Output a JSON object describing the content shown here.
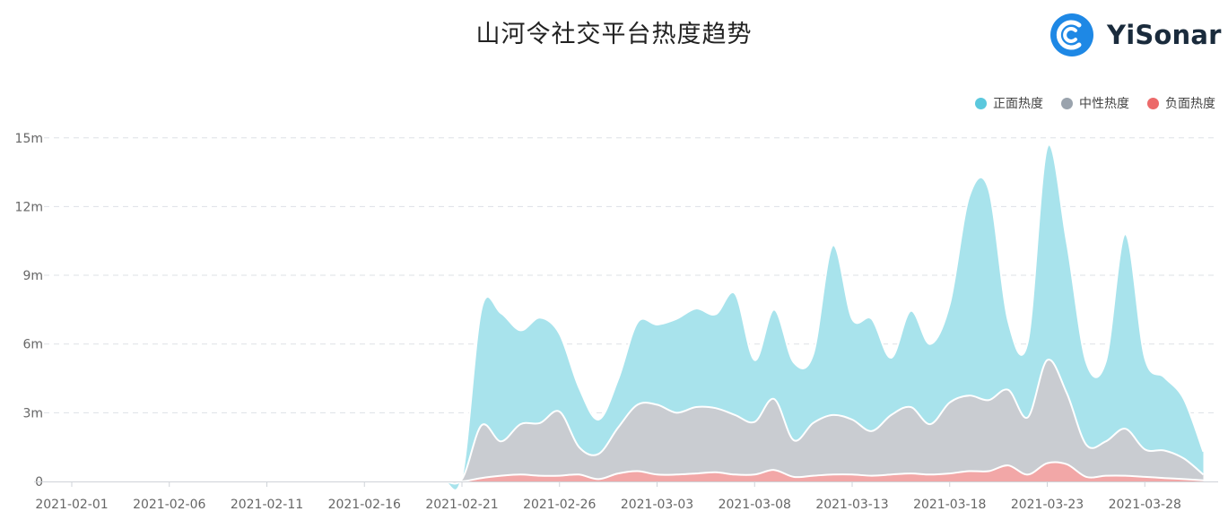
{
  "title": "山河令社交平台热度趋势",
  "brand": {
    "name": "YiSonar",
    "logo_color": "#1e88e5",
    "icon": "yisonar-logo-icon"
  },
  "legend": [
    {
      "label": "正面热度",
      "color": "#5bc8dd"
    },
    {
      "label": "中性热度",
      "color": "#9aa3ad"
    },
    {
      "label": "负面热度",
      "color": "#ec6a6a"
    }
  ],
  "chart_data": {
    "type": "area",
    "stacked": true,
    "grid": true,
    "legend_position": "top-right",
    "y_ticks": [
      "0",
      "3m",
      "6m",
      "9m",
      "12m",
      "15m"
    ],
    "y_tick_values": [
      0,
      3,
      6,
      9,
      12,
      15
    ],
    "ylim": [
      0,
      15
    ],
    "x_ticks": [
      "2021-02-01",
      "2021-02-06",
      "2021-02-11",
      "2021-02-16",
      "2021-02-21",
      "2021-02-26",
      "2021-03-03",
      "2021-03-08",
      "2021-03-13",
      "2021-03-18",
      "2021-03-23",
      "2021-03-28"
    ],
    "x": [
      "2021-02-01",
      "2021-02-02",
      "2021-02-03",
      "2021-02-04",
      "2021-02-05",
      "2021-02-06",
      "2021-02-07",
      "2021-02-08",
      "2021-02-09",
      "2021-02-10",
      "2021-02-11",
      "2021-02-12",
      "2021-02-13",
      "2021-02-14",
      "2021-02-15",
      "2021-02-16",
      "2021-02-17",
      "2021-02-18",
      "2021-02-19",
      "2021-02-20",
      "2021-02-21",
      "2021-02-22",
      "2021-02-23",
      "2021-02-24",
      "2021-02-25",
      "2021-02-26",
      "2021-02-27",
      "2021-02-28",
      "2021-03-01",
      "2021-03-02",
      "2021-03-03",
      "2021-03-04",
      "2021-03-05",
      "2021-03-06",
      "2021-03-07",
      "2021-03-08",
      "2021-03-09",
      "2021-03-10",
      "2021-03-11",
      "2021-03-12",
      "2021-03-13",
      "2021-03-14",
      "2021-03-15",
      "2021-03-16",
      "2021-03-17",
      "2021-03-18",
      "2021-03-19",
      "2021-03-20",
      "2021-03-21",
      "2021-03-22",
      "2021-03-23",
      "2021-03-24",
      "2021-03-25",
      "2021-03-26",
      "2021-03-27",
      "2021-03-28",
      "2021-03-29",
      "2021-03-30",
      "2021-03-31"
    ],
    "series": [
      {
        "name": "负面热度",
        "color": "#ec6a6a",
        "values": [
          0.01,
          0.01,
          0.01,
          0.01,
          0.01,
          0.01,
          0.01,
          0.01,
          0.01,
          0.01,
          0.01,
          0.01,
          0.01,
          0.01,
          0.01,
          0.01,
          0.01,
          0.01,
          0.01,
          0.01,
          0.0,
          0.15,
          0.25,
          0.3,
          0.25,
          0.25,
          0.3,
          0.1,
          0.35,
          0.45,
          0.3,
          0.3,
          0.35,
          0.4,
          0.3,
          0.3,
          0.5,
          0.2,
          0.25,
          0.3,
          0.3,
          0.25,
          0.3,
          0.35,
          0.3,
          0.35,
          0.45,
          0.45,
          0.7,
          0.3,
          0.8,
          0.75,
          0.2,
          0.25,
          0.25,
          0.2,
          0.15,
          0.1,
          0.05
        ]
      },
      {
        "name": "中性热度",
        "color": "#9aa3ad",
        "values": [
          0.02,
          0.02,
          0.02,
          0.03,
          0.03,
          0.02,
          0.02,
          0.02,
          0.02,
          0.02,
          0.02,
          0.02,
          0.02,
          0.02,
          0.02,
          0.02,
          0.02,
          0.02,
          0.02,
          0.02,
          0.1,
          2.3,
          1.5,
          2.2,
          2.3,
          2.8,
          1.2,
          1.1,
          2.0,
          2.9,
          3.05,
          2.7,
          2.9,
          2.8,
          2.6,
          2.3,
          3.1,
          1.6,
          2.3,
          2.6,
          2.4,
          1.95,
          2.6,
          2.9,
          2.2,
          3.1,
          3.3,
          3.1,
          3.3,
          2.5,
          4.5,
          3.1,
          1.4,
          1.5,
          2.05,
          1.2,
          1.2,
          0.9,
          0.25
        ]
      },
      {
        "name": "正面热度",
        "color": "#5bc8dd",
        "values": [
          0.04,
          0.04,
          0.04,
          0.05,
          0.05,
          0.04,
          0.04,
          0.04,
          0.04,
          0.04,
          0.04,
          0.04,
          0.04,
          0.04,
          0.04,
          0.04,
          0.04,
          0.04,
          0.04,
          0.04,
          0.1,
          5.1,
          5.6,
          4.1,
          4.6,
          3.4,
          2.6,
          1.5,
          2.1,
          3.6,
          3.5,
          4.1,
          4.3,
          4.1,
          5.3,
          2.7,
          3.9,
          3.4,
          3.0,
          7.4,
          4.4,
          4.9,
          2.5,
          4.2,
          3.5,
          4.3,
          8.7,
          9.2,
          3.0,
          3.3,
          9.3,
          6.6,
          3.6,
          3.5,
          8.5,
          4.0,
          3.2,
          2.6,
          1.0
        ]
      }
    ]
  }
}
